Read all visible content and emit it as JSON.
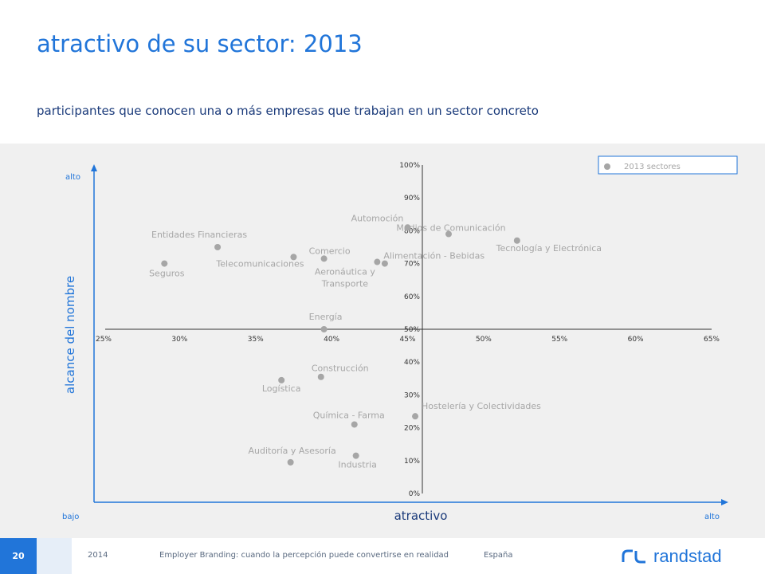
{
  "title": "atractivo de su sector: 2013",
  "subtitle": "participantes que conocen una o más empresas que trabajan en un sector concreto",
  "footer": {
    "page": "20",
    "year": "2014",
    "text": "Employer Branding: cuando la percepción puede convertirse en realidad",
    "country": "España",
    "brand": "randstad"
  },
  "colors": {
    "title": "#2175d9",
    "subtitle": "#1a3a7a",
    "axis_labels": "#2175d9",
    "points": "#a6a6a6",
    "point_labels": "#a6a6a6",
    "panel": "#f0f0f0"
  },
  "chart_data": {
    "type": "scatter",
    "xlabel": "atractivo",
    "ylabel": "alcance del nombre",
    "x_low_label": "bajo",
    "x_high_label": "alto",
    "y_high_label": "alto",
    "xlim": [
      25,
      65
    ],
    "ylim": [
      0,
      100
    ],
    "x_ticks": [
      "25%",
      "30%",
      "35%",
      "40%",
      "45%",
      "50%",
      "55%",
      "60%",
      "65%"
    ],
    "y_ticks": [
      "0%",
      "10%",
      "20%",
      "30%",
      "40%",
      "50%",
      "60%",
      "70%",
      "80%",
      "90%",
      "100%"
    ],
    "grid": false,
    "legend": {
      "label": "2013 sectores",
      "position": "top-right"
    },
    "points": [
      {
        "label": "Seguros",
        "x": 29,
        "y": 70
      },
      {
        "label": "Entidades Financieras",
        "x": 32.5,
        "y": 75
      },
      {
        "label": "Telecomunicaciones",
        "x": 37.5,
        "y": 72
      },
      {
        "label": "Comercio",
        "x": 39.5,
        "y": 71.5
      },
      {
        "label": "Aeronáutica y Transporte",
        "x": 43.5,
        "y": 70
      },
      {
        "label": "Alimentación - Bebidas",
        "x": 43,
        "y": 70.5
      },
      {
        "label": "Automoción",
        "x": 45,
        "y": 81
      },
      {
        "label": "Medios de Comunicación",
        "x": 47.7,
        "y": 79
      },
      {
        "label": "Tecnología y Electrónica",
        "x": 52.2,
        "y": 77
      },
      {
        "label": "Energía",
        "x": 39.5,
        "y": 50
      },
      {
        "label": "Construcción",
        "x": 39.3,
        "y": 35.5
      },
      {
        "label": "Logística",
        "x": 36.7,
        "y": 34.5
      },
      {
        "label": "Hostelería y Colectividades",
        "x": 45.5,
        "y": 23.5
      },
      {
        "label": "Química - Farma",
        "x": 41.5,
        "y": 21
      },
      {
        "label": "Auditoría y Asesoría",
        "x": 37.3,
        "y": 9.5
      },
      {
        "label": "Industria",
        "x": 41.6,
        "y": 11.5
      }
    ]
  }
}
